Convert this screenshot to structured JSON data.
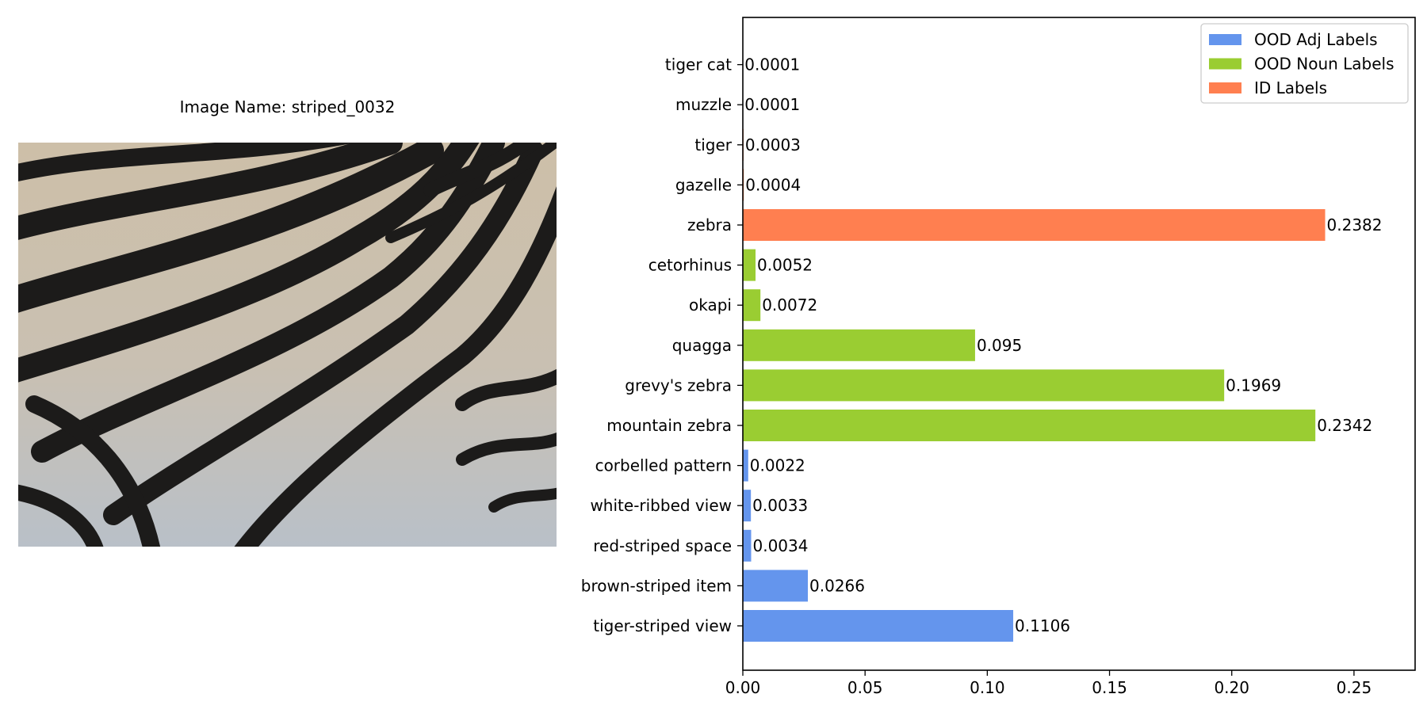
{
  "image_panel": {
    "title": "Image Name: striped_0032"
  },
  "colors": {
    "ood_adj": "#6495ED",
    "ood_noun": "#9ACD32",
    "id": "#FF7F50"
  },
  "chart_data": {
    "type": "bar",
    "orientation": "horizontal",
    "categories": [
      "tiger-striped view",
      "brown-striped item",
      "red-striped space",
      "white-ribbed view",
      "corbelled pattern",
      "mountain zebra",
      "grevy's zebra",
      "quagga",
      "okapi",
      "cetorhinus",
      "zebra",
      "gazelle",
      "tiger",
      "muzzle",
      "tiger cat"
    ],
    "values": [
      0.1106,
      0.0266,
      0.0034,
      0.0033,
      0.0022,
      0.2342,
      0.1969,
      0.095,
      0.0072,
      0.0052,
      0.2382,
      0.0004,
      0.0003,
      0.0001,
      0.0001
    ],
    "value_labels": [
      "0.1106",
      "0.0266",
      "0.0034",
      "0.0033",
      "0.0022",
      "0.2342",
      "0.1969",
      "0.095",
      "0.0072",
      "0.0052",
      "0.2382",
      "0.0004",
      "0.0003",
      "0.0001",
      "0.0001"
    ],
    "groups": [
      "ood_adj",
      "ood_adj",
      "ood_adj",
      "ood_adj",
      "ood_adj",
      "ood_noun",
      "ood_noun",
      "ood_noun",
      "ood_noun",
      "ood_noun",
      "id",
      "id",
      "id",
      "id",
      "id"
    ],
    "series": [
      {
        "key": "ood_adj",
        "name": "OOD Adj Labels",
        "color": "#6495ED"
      },
      {
        "key": "ood_noun",
        "name": "OOD Noun Labels",
        "color": "#9ACD32"
      },
      {
        "key": "id",
        "name": "ID Labels",
        "color": "#FF7F50"
      }
    ],
    "xlim": [
      0,
      0.275
    ],
    "xticks": [
      0.0,
      0.05,
      0.1,
      0.15,
      0.2,
      0.25
    ],
    "xtick_labels": [
      "0.00",
      "0.05",
      "0.10",
      "0.15",
      "0.20",
      "0.25"
    ],
    "grid": false,
    "legend_position": "top-right"
  }
}
